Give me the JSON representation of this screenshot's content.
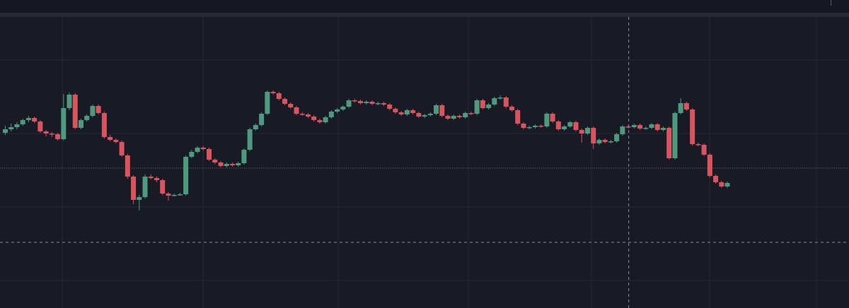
{
  "chart_data": {
    "type": "candlestick",
    "title": "",
    "xlabel": "",
    "ylabel": "",
    "grid": true,
    "ylim": [
      0,
      400
    ],
    "colors": {
      "background": "#181b26",
      "grid": "#262a36",
      "up": "#4d9a7f",
      "down": "#d9545c",
      "crosshair": "#8a8e99",
      "price_line": "#6b6f7a"
    },
    "crosshair": {
      "candle_index": 107,
      "price": 93
    },
    "price_line": 198,
    "candles": [
      [
        248,
        253,
        258,
        245
      ],
      [
        253,
        256,
        261,
        250
      ],
      [
        256,
        260,
        263,
        253
      ],
      [
        260,
        266,
        268,
        258
      ],
      [
        266,
        269,
        272,
        263
      ],
      [
        269,
        264,
        271,
        262
      ],
      [
        264,
        250,
        266,
        248
      ],
      [
        250,
        247,
        252,
        243
      ],
      [
        247,
        246,
        249,
        242
      ],
      [
        246,
        239,
        248,
        237
      ],
      [
        239,
        283,
        303,
        237
      ],
      [
        283,
        302,
        305,
        280
      ],
      [
        302,
        255,
        304,
        253
      ],
      [
        255,
        266,
        268,
        253
      ],
      [
        266,
        272,
        274,
        264
      ],
      [
        272,
        286,
        288,
        270
      ],
      [
        286,
        276,
        288,
        274
      ],
      [
        276,
        242,
        278,
        240
      ],
      [
        242,
        238,
        245,
        236
      ],
      [
        238,
        235,
        240,
        233
      ],
      [
        235,
        216,
        237,
        214
      ],
      [
        216,
        186,
        218,
        183
      ],
      [
        186,
        153,
        188,
        147
      ],
      [
        153,
        157,
        160,
        138
      ],
      [
        157,
        186,
        189,
        155
      ],
      [
        186,
        184,
        189,
        182
      ],
      [
        184,
        181,
        186,
        178
      ],
      [
        181,
        162,
        183,
        160
      ],
      [
        162,
        159,
        164,
        152
      ],
      [
        159,
        160,
        162,
        158
      ],
      [
        160,
        161,
        163,
        159
      ],
      [
        161,
        214,
        216,
        159
      ],
      [
        214,
        221,
        224,
        212
      ],
      [
        221,
        227,
        229,
        219
      ],
      [
        227,
        225,
        229,
        223
      ],
      [
        225,
        210,
        227,
        208
      ],
      [
        210,
        206,
        212,
        204
      ],
      [
        206,
        201,
        208,
        199
      ],
      [
        201,
        204,
        206,
        199
      ],
      [
        204,
        202,
        206,
        200
      ],
      [
        202,
        205,
        207,
        200
      ],
      [
        205,
        224,
        226,
        203
      ],
      [
        224,
        253,
        255,
        222
      ],
      [
        253,
        259,
        261,
        251
      ],
      [
        259,
        275,
        277,
        257
      ],
      [
        275,
        306,
        308,
        273
      ],
      [
        306,
        304,
        308,
        302
      ],
      [
        304,
        296,
        306,
        294
      ],
      [
        296,
        289,
        298,
        287
      ],
      [
        289,
        284,
        291,
        282
      ],
      [
        284,
        275,
        286,
        273
      ],
      [
        275,
        274,
        277,
        272
      ],
      [
        274,
        271,
        276,
        269
      ],
      [
        271,
        266,
        273,
        264
      ],
      [
        266,
        263,
        268,
        261
      ],
      [
        263,
        270,
        272,
        261
      ],
      [
        270,
        278,
        280,
        268
      ],
      [
        278,
        281,
        283,
        276
      ],
      [
        281,
        285,
        287,
        279
      ],
      [
        285,
        294,
        296,
        283
      ],
      [
        294,
        293,
        296,
        291
      ],
      [
        293,
        290,
        295,
        288
      ],
      [
        290,
        292,
        294,
        288
      ],
      [
        292,
        289,
        294,
        287
      ],
      [
        289,
        290,
        292,
        287
      ],
      [
        290,
        288,
        292,
        286
      ],
      [
        288,
        282,
        290,
        280
      ],
      [
        282,
        277,
        284,
        275
      ],
      [
        277,
        274,
        279,
        272
      ],
      [
        274,
        280,
        282,
        272
      ],
      [
        280,
        276,
        282,
        274
      ],
      [
        276,
        271,
        278,
        269
      ],
      [
        271,
        273,
        275,
        269
      ],
      [
        273,
        275,
        277,
        271
      ],
      [
        275,
        287,
        289,
        273
      ],
      [
        287,
        272,
        289,
        270
      ],
      [
        272,
        268,
        274,
        266
      ],
      [
        268,
        272,
        274,
        266
      ],
      [
        272,
        270,
        274,
        268
      ],
      [
        270,
        276,
        278,
        268
      ],
      [
        276,
        275,
        278,
        273
      ],
      [
        275,
        294,
        296,
        273
      ],
      [
        294,
        283,
        296,
        281
      ],
      [
        283,
        288,
        290,
        281
      ],
      [
        288,
        297,
        299,
        286
      ],
      [
        297,
        298,
        301,
        295
      ],
      [
        298,
        285,
        300,
        283
      ],
      [
        285,
        280,
        287,
        278
      ],
      [
        280,
        261,
        282,
        259
      ],
      [
        261,
        255,
        263,
        253
      ],
      [
        255,
        256,
        258,
        253
      ],
      [
        256,
        258,
        260,
        254
      ],
      [
        258,
        257,
        260,
        255
      ],
      [
        257,
        275,
        277,
        255
      ],
      [
        275,
        264,
        277,
        262
      ],
      [
        264,
        253,
        266,
        251
      ],
      [
        253,
        257,
        259,
        251
      ],
      [
        257,
        263,
        265,
        255
      ],
      [
        263,
        252,
        265,
        250
      ],
      [
        252,
        247,
        254,
        234
      ],
      [
        247,
        255,
        257,
        245
      ],
      [
        255,
        233,
        257,
        225
      ],
      [
        233,
        238,
        240,
        231
      ],
      [
        238,
        235,
        240,
        233
      ],
      [
        235,
        236,
        238,
        233
      ],
      [
        236,
        246,
        248,
        234
      ],
      [
        246,
        257,
        259,
        244
      ],
      [
        257,
        256,
        259,
        254
      ],
      [
        256,
        259,
        261,
        254
      ],
      [
        259,
        254,
        261,
        252
      ],
      [
        254,
        255,
        257,
        252
      ],
      [
        255,
        260,
        262,
        253
      ],
      [
        260,
        252,
        262,
        250
      ],
      [
        252,
        255,
        257,
        250
      ],
      [
        255,
        212,
        257,
        210
      ],
      [
        212,
        276,
        278,
        210
      ],
      [
        276,
        290,
        297,
        274
      ],
      [
        290,
        281,
        292,
        279
      ],
      [
        281,
        232,
        283,
        230
      ],
      [
        232,
        231,
        234,
        229
      ],
      [
        231,
        217,
        233,
        215
      ],
      [
        217,
        187,
        219,
        185
      ],
      [
        187,
        178,
        189,
        176
      ],
      [
        178,
        172,
        180,
        170
      ],
      [
        172,
        177,
        179,
        170
      ]
    ]
  }
}
